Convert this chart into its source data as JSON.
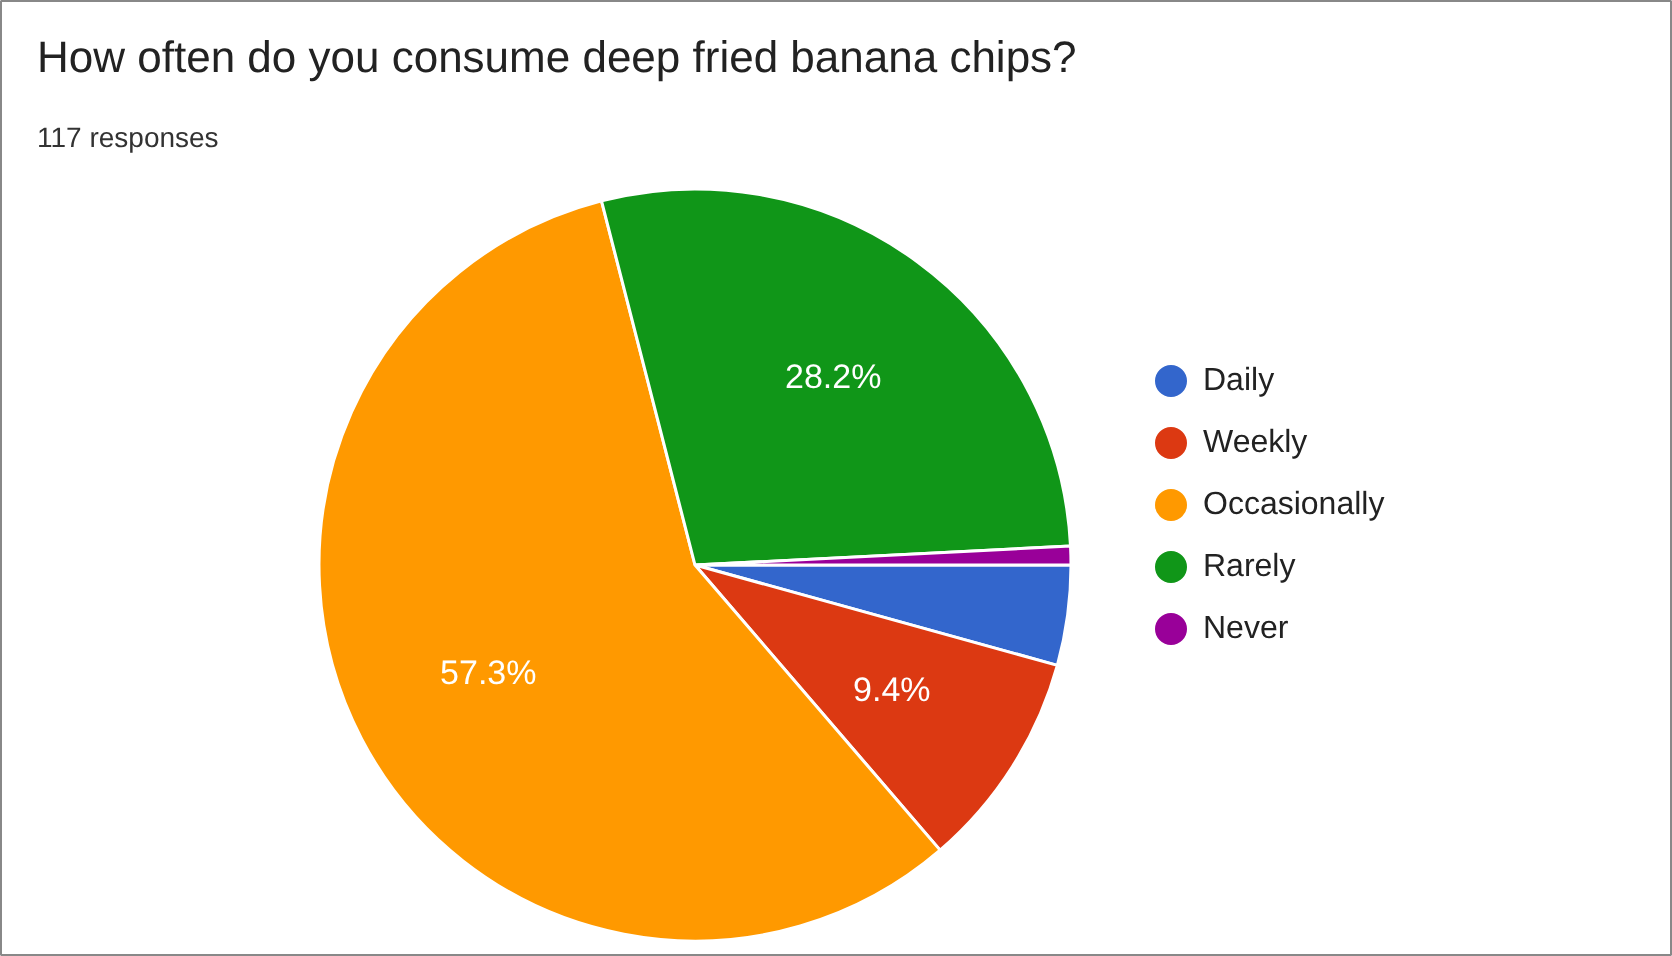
{
  "chart_data": {
    "type": "pie",
    "title": "How often do you consume deep fried banana chips?",
    "subtitle": "117 responses",
    "categories": [
      "Daily",
      "Weekly",
      "Occasionally",
      "Rarely",
      "Never"
    ],
    "values": [
      4.3,
      9.4,
      57.3,
      28.2,
      0.8
    ],
    "colors": [
      "#3366cc",
      "#dc3912",
      "#ff9900",
      "#109618",
      "#990099"
    ],
    "value_labels": [
      null,
      "9.4%",
      "57.3%",
      "28.2%",
      null
    ],
    "legend": "right"
  }
}
